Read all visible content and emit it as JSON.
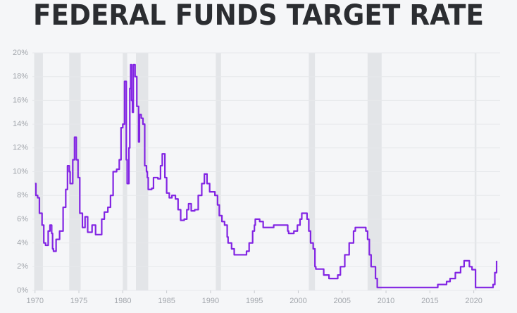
{
  "chart_data": {
    "type": "line",
    "title": "FEDERAL FUNDS TARGET RATE",
    "step": true,
    "grid": true,
    "color": "#8224e3",
    "recession_color": "#e3e5e8",
    "recessions": [
      {
        "start": 1969.9,
        "end": 1970.9
      },
      {
        "start": 1973.9,
        "end": 1975.2
      },
      {
        "start": 1980.0,
        "end": 1980.5
      },
      {
        "start": 1981.5,
        "end": 1982.9
      },
      {
        "start": 1990.6,
        "end": 1991.2
      },
      {
        "start": 2001.2,
        "end": 2001.9
      },
      {
        "start": 2007.9,
        "end": 2009.5
      },
      {
        "start": 2020.1,
        "end": 2020.3
      }
    ],
    "x": [
      1970.0,
      1970.1,
      1970.3,
      1970.5,
      1970.8,
      1971.0,
      1971.2,
      1971.5,
      1971.7,
      1971.9,
      1972.0,
      1972.1,
      1972.4,
      1972.8,
      1973.2,
      1973.5,
      1973.7,
      1973.9,
      1974.0,
      1974.3,
      1974.5,
      1974.7,
      1974.9,
      1975.1,
      1975.4,
      1975.7,
      1976.0,
      1976.5,
      1976.9,
      1977.6,
      1977.9,
      1978.3,
      1978.6,
      1978.9,
      1979.3,
      1979.6,
      1979.8,
      1980.0,
      1980.2,
      1980.4,
      1980.5,
      1980.7,
      1980.8,
      1980.9,
      1981.0,
      1981.1,
      1981.2,
      1981.4,
      1981.6,
      1981.8,
      1981.9,
      1982.1,
      1982.3,
      1982.5,
      1982.7,
      1982.8,
      1982.9,
      1983.3,
      1983.5,
      1984.0,
      1984.3,
      1984.5,
      1984.8,
      1985.0,
      1985.3,
      1985.6,
      1986.0,
      1986.3,
      1986.6,
      1987.0,
      1987.3,
      1987.5,
      1987.8,
      1988.2,
      1988.6,
      1989.0,
      1989.3,
      1989.6,
      1989.9,
      1990.5,
      1990.8,
      1991.0,
      1991.3,
      1991.6,
      1991.9,
      1992.0,
      1992.4,
      1992.7,
      1994.1,
      1994.4,
      1994.8,
      1995.0,
      1995.1,
      1995.6,
      1996.0,
      1997.2,
      1998.8,
      1998.9,
      1999.5,
      1999.9,
      2000.2,
      2000.4,
      2001.0,
      2001.2,
      2001.4,
      2001.7,
      2001.9,
      2002.0,
      2002.9,
      2003.5,
      2004.5,
      2004.8,
      2005.3,
      2005.8,
      2006.3,
      2006.5,
      2007.7,
      2007.9,
      2008.1,
      2008.3,
      2008.8,
      2009.0,
      2015.9,
      2016.9,
      2017.3,
      2017.9,
      2018.5,
      2018.9,
      2019.5,
      2019.8,
      2020.2,
      2022.2,
      2022.4,
      2022.6
    ],
    "series": [
      {
        "name": "Federal funds target rate",
        "color": "#8224e3",
        "values": [
          9.0,
          8.0,
          7.8,
          6.5,
          5.5,
          4.0,
          3.8,
          5.0,
          5.5,
          4.8,
          3.5,
          3.3,
          4.3,
          5.0,
          7.0,
          8.5,
          10.5,
          10.0,
          9.0,
          11.0,
          12.9,
          11.0,
          9.5,
          6.5,
          5.3,
          6.2,
          4.9,
          5.5,
          4.7,
          6.0,
          6.6,
          7.0,
          8.0,
          10.0,
          10.2,
          11.0,
          13.7,
          14.0,
          17.6,
          11.0,
          9.0,
          12.0,
          17.0,
          19.0,
          16.0,
          15.0,
          19.0,
          18.0,
          15.5,
          12.5,
          14.8,
          14.5,
          14.0,
          10.5,
          10.0,
          9.5,
          8.5,
          8.6,
          9.5,
          9.4,
          10.5,
          11.5,
          9.5,
          8.2,
          7.8,
          8.0,
          7.7,
          6.8,
          5.9,
          6.0,
          6.8,
          7.3,
          6.7,
          6.8,
          8.0,
          9.0,
          9.8,
          9.0,
          8.3,
          8.0,
          7.2,
          6.3,
          5.8,
          5.5,
          4.5,
          4.0,
          3.5,
          3.0,
          3.3,
          4.0,
          5.0,
          5.5,
          6.0,
          5.8,
          5.3,
          5.5,
          5.0,
          4.8,
          5.0,
          5.5,
          6.0,
          6.5,
          6.0,
          5.0,
          4.0,
          3.5,
          2.0,
          1.8,
          1.3,
          1.0,
          1.3,
          2.0,
          3.0,
          4.0,
          5.0,
          5.3,
          5.0,
          4.3,
          3.0,
          2.0,
          1.0,
          0.25,
          0.5,
          0.75,
          1.0,
          1.5,
          2.0,
          2.5,
          2.0,
          1.75,
          0.25,
          0.5,
          1.5,
          2.5
        ]
      }
    ],
    "xlim": [
      1969.7,
      2023.0
    ],
    "xticks": [
      1970,
      1975,
      1980,
      1985,
      1990,
      1995,
      2000,
      2005,
      2010,
      2015,
      2020
    ],
    "ylim": [
      0,
      20
    ],
    "yticks": [
      {
        "value": 0,
        "label": "0%"
      },
      {
        "value": 2,
        "label": "2%"
      },
      {
        "value": 4,
        "label": "4%"
      },
      {
        "value": 6,
        "label": "6%"
      },
      {
        "value": 8,
        "label": "8%"
      },
      {
        "value": 10,
        "label": "10%"
      },
      {
        "value": 12,
        "label": "12%"
      },
      {
        "value": 14,
        "label": "14%"
      },
      {
        "value": 16,
        "label": "16%"
      },
      {
        "value": 18,
        "label": "18%"
      },
      {
        "value": 20,
        "label": "20%"
      }
    ]
  }
}
